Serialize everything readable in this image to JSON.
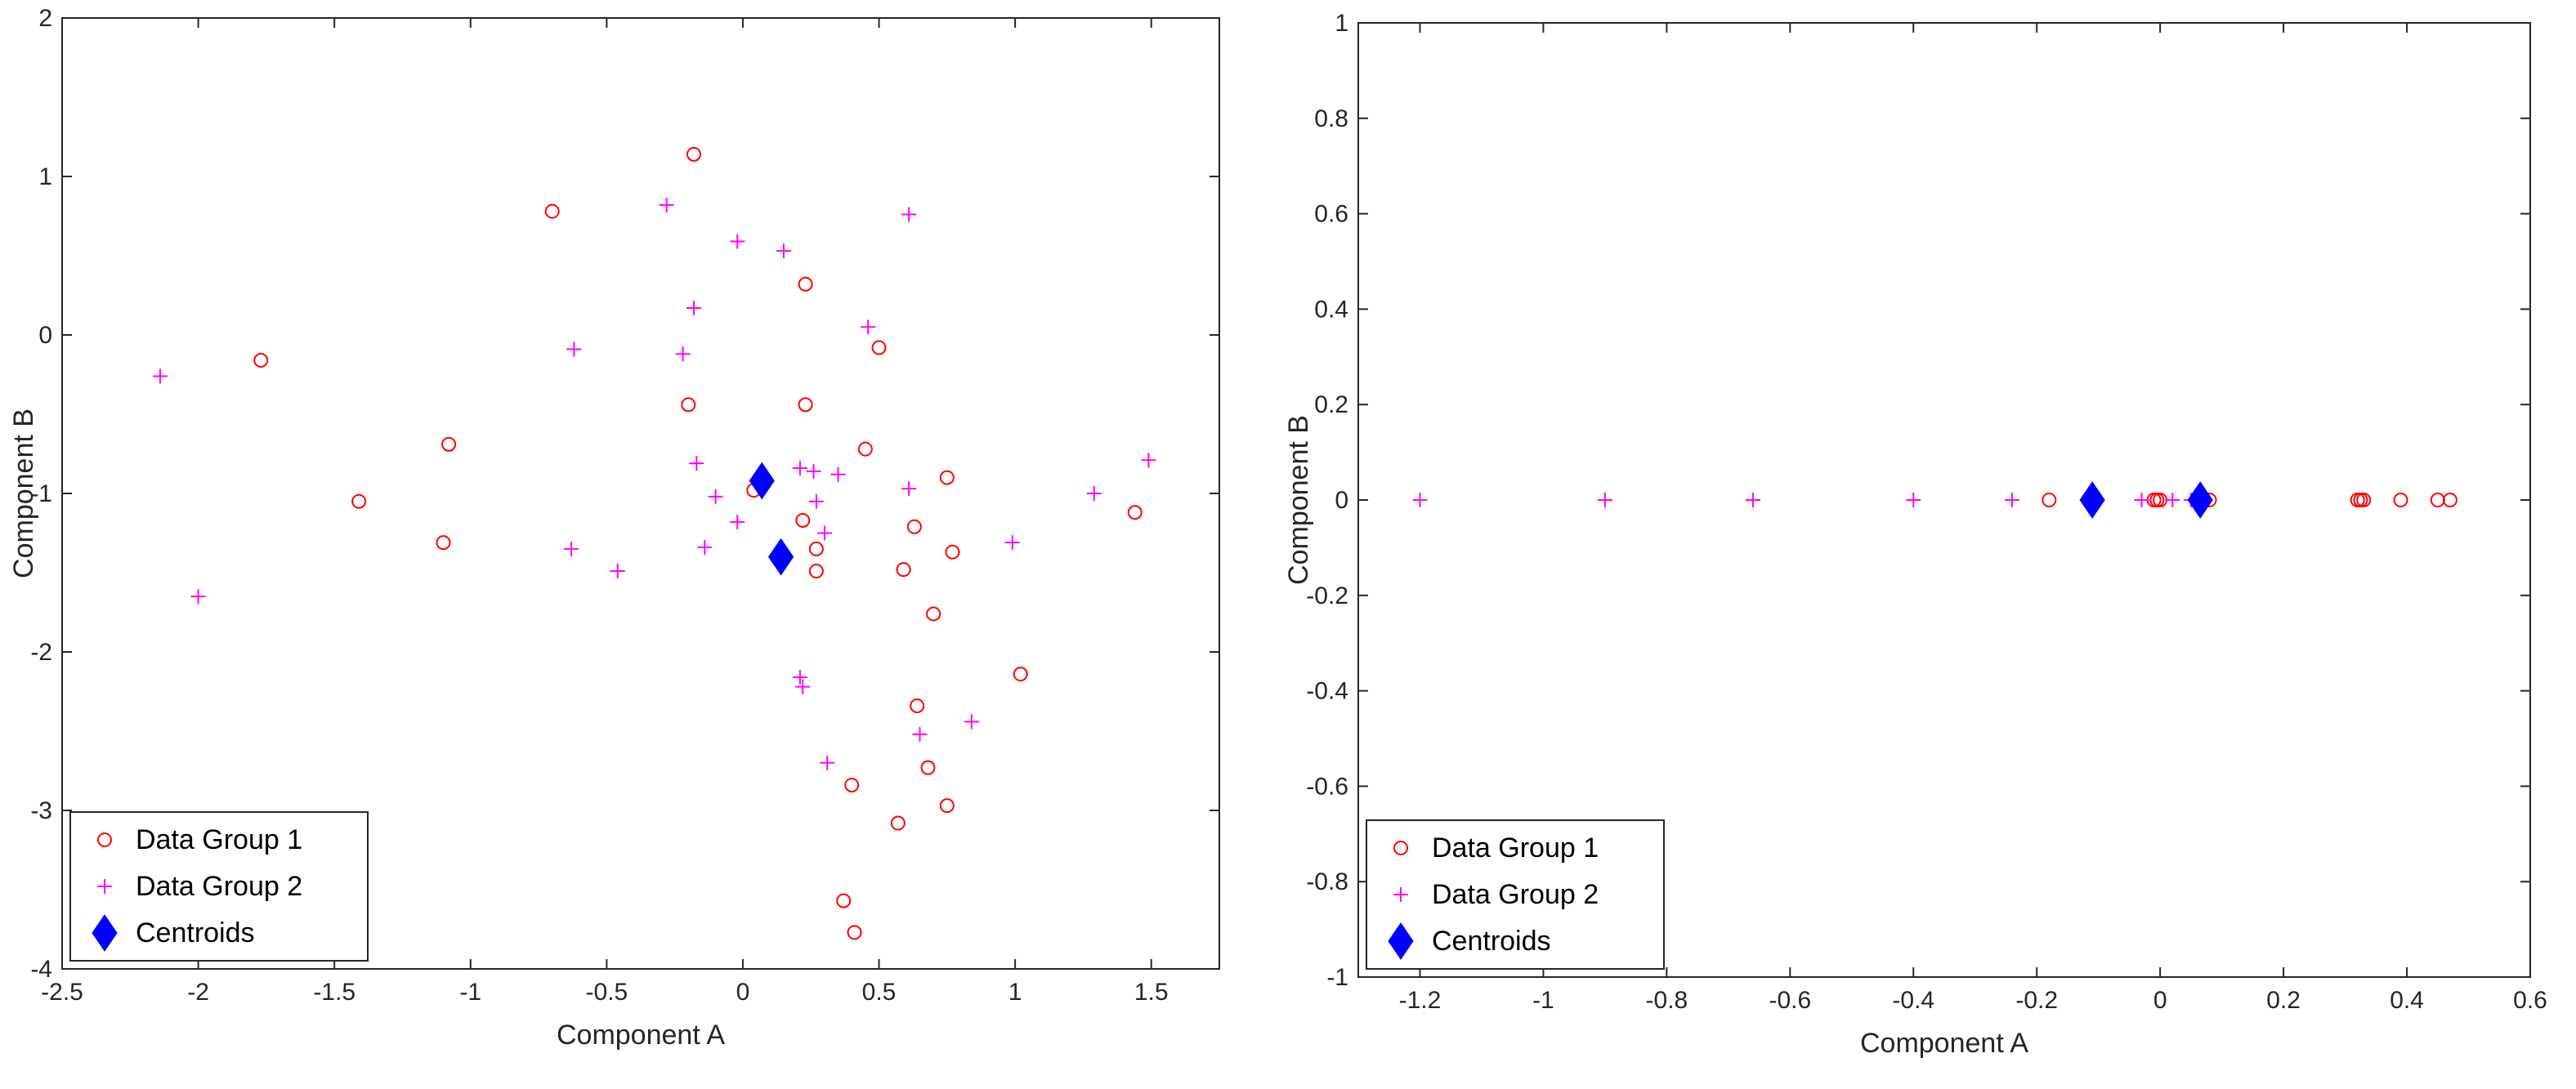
{
  "chart_data": [
    {
      "type": "scatter",
      "title": "",
      "xlabel": "Component A",
      "ylabel": "Component B",
      "xlim": [
        -2.5,
        1.75
      ],
      "ylim": [
        -4,
        2
      ],
      "xticks": [
        -2.5,
        -2,
        -1.5,
        -1,
        -0.5,
        0,
        0.5,
        1,
        1.5
      ],
      "xtick_labels": [
        "-2.5",
        "-2",
        "-1.5",
        "-1",
        "-0.5",
        "0",
        "0.5",
        "1",
        "1.5"
      ],
      "yticks": [
        -4,
        -3,
        -2,
        -1,
        0,
        1,
        2
      ],
      "ytick_labels": [
        "-4",
        "-3",
        "-2",
        "-1",
        "0",
        "1",
        "2"
      ],
      "grid": false,
      "legend_position": "bottom-left",
      "series": [
        {
          "name": "Data Group 1",
          "marker": "circle",
          "color": "#ff0000",
          "points": [
            [
              -0.18,
              1.14
            ],
            [
              -0.7,
              0.78
            ],
            [
              0.23,
              0.32
            ],
            [
              0.5,
              -0.08
            ],
            [
              -1.77,
              -0.16
            ],
            [
              -0.2,
              -0.44
            ],
            [
              0.23,
              -0.44
            ],
            [
              -1.08,
              -0.69
            ],
            [
              0.45,
              -0.72
            ],
            [
              0.75,
              -0.9
            ],
            [
              0.04,
              -0.98
            ],
            [
              -1.41,
              -1.05
            ],
            [
              1.44,
              -1.12
            ],
            [
              0.63,
              -1.21
            ],
            [
              0.22,
              -1.17
            ],
            [
              -1.1,
              -1.31
            ],
            [
              0.27,
              -1.35
            ],
            [
              0.77,
              -1.37
            ],
            [
              0.27,
              -1.49
            ],
            [
              0.59,
              -1.48
            ],
            [
              0.7,
              -1.76
            ],
            [
              1.02,
              -2.14
            ],
            [
              0.64,
              -2.34
            ],
            [
              0.68,
              -2.73
            ],
            [
              0.4,
              -2.84
            ],
            [
              0.75,
              -2.97
            ],
            [
              0.57,
              -3.08
            ],
            [
              0.37,
              -3.57
            ],
            [
              0.41,
              -3.77
            ]
          ]
        },
        {
          "name": "Data Group 2",
          "marker": "plus",
          "color": "#ff00ff",
          "points": [
            [
              -0.28,
              0.82
            ],
            [
              0.61,
              0.76
            ],
            [
              -0.02,
              0.59
            ],
            [
              0.15,
              0.53
            ],
            [
              -0.18,
              0.17
            ],
            [
              0.46,
              0.05
            ],
            [
              -0.62,
              -0.09
            ],
            [
              -0.22,
              -0.12
            ],
            [
              -2.14,
              -0.26
            ],
            [
              -0.17,
              -0.81
            ],
            [
              0.21,
              -0.84
            ],
            [
              0.26,
              -0.86
            ],
            [
              0.35,
              -0.88
            ],
            [
              1.49,
              -0.79
            ],
            [
              0.61,
              -0.97
            ],
            [
              -0.1,
              -1.02
            ],
            [
              0.27,
              -1.05
            ],
            [
              1.29,
              -1.0
            ],
            [
              0.3,
              -1.25
            ],
            [
              -0.02,
              -1.18
            ],
            [
              0.99,
              -1.31
            ],
            [
              -0.14,
              -1.34
            ],
            [
              -0.63,
              -1.35
            ],
            [
              -0.46,
              -1.49
            ],
            [
              -2.0,
              -1.65
            ],
            [
              0.21,
              -2.16
            ],
            [
              0.22,
              -2.22
            ],
            [
              0.84,
              -2.44
            ],
            [
              0.65,
              -2.52
            ],
            [
              0.31,
              -2.7
            ]
          ]
        },
        {
          "name": "Centroids",
          "marker": "diamond",
          "color": "#0000ff",
          "points": [
            [
              0.07,
              -0.92
            ],
            [
              0.14,
              -1.4
            ]
          ]
        }
      ],
      "legend": [
        "Data Group 1",
        "Data Group 2",
        "Centroids"
      ]
    },
    {
      "type": "scatter",
      "title": "",
      "xlabel": "Component A",
      "ylabel": "Component B",
      "xlim": [
        -1.3,
        0.6
      ],
      "ylim": [
        -1,
        1
      ],
      "xticks": [
        -1.2,
        -1,
        -0.8,
        -0.6,
        -0.4,
        -0.2,
        0,
        0.2,
        0.4,
        0.6
      ],
      "xtick_labels": [
        "-1.2",
        "-1",
        "-0.8",
        "-0.6",
        "-0.4",
        "-0.2",
        "0",
        "0.2",
        "0.4",
        "0.6"
      ],
      "yticks": [
        -1,
        -0.8,
        -0.6,
        -0.4,
        -0.2,
        0,
        0.2,
        0.4,
        0.6,
        0.8,
        1
      ],
      "ytick_labels": [
        "-1",
        "-0.8",
        "-0.6",
        "-0.4",
        "-0.2",
        "0",
        "0.2",
        "0.4",
        "0.6",
        "0.8",
        "1"
      ],
      "grid": false,
      "legend_position": "bottom-left",
      "series": [
        {
          "name": "Data Group 1",
          "marker": "circle",
          "color": "#ff0000",
          "points": [
            [
              -0.18,
              0
            ],
            [
              -0.01,
              0
            ],
            [
              -0.005,
              0
            ],
            [
              0.0,
              0
            ],
            [
              0.08,
              0
            ],
            [
              0.32,
              0
            ],
            [
              0.325,
              0
            ],
            [
              0.33,
              0
            ],
            [
              0.39,
              0
            ],
            [
              0.45,
              0
            ],
            [
              0.47,
              0
            ]
          ]
        },
        {
          "name": "Data Group 2",
          "marker": "plus",
          "color": "#ff00ff",
          "points": [
            [
              -1.2,
              0
            ],
            [
              -0.9,
              0
            ],
            [
              -0.66,
              0
            ],
            [
              -0.4,
              0
            ],
            [
              -0.24,
              0
            ],
            [
              -0.03,
              0
            ],
            [
              0.02,
              0
            ],
            [
              0.05,
              0
            ]
          ]
        },
        {
          "name": "Centroids",
          "marker": "diamond",
          "color": "#0000ff",
          "points": [
            [
              -0.11,
              0
            ],
            [
              0.065,
              0
            ]
          ]
        }
      ],
      "legend": [
        "Data Group 1",
        "Data Group 2",
        "Centroids"
      ]
    }
  ]
}
